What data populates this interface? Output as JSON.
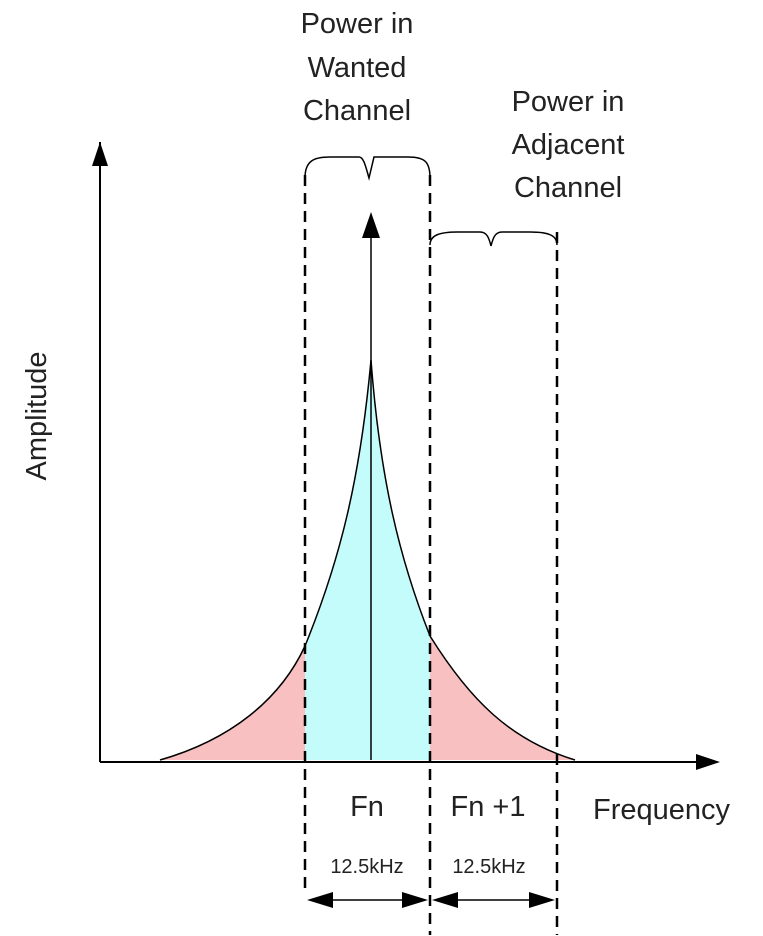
{
  "diagram": {
    "wanted_label_lines": [
      "Power in",
      "Wanted",
      "Channel"
    ],
    "adjacent_label_lines": [
      "Power in",
      "Adjacent",
      "Channel"
    ],
    "y_axis_label": "Amplitude",
    "x_axis_label": "Frequency",
    "channel_labels": [
      "Fn",
      "Fn +1"
    ],
    "bandwidth_labels": [
      "12.5kHz",
      "12.5kHz"
    ],
    "colors": {
      "wanted_fill": "#c4fcfc",
      "skirt_fill": "#f8c0c0",
      "line": "#000000",
      "text": "#222222"
    }
  }
}
